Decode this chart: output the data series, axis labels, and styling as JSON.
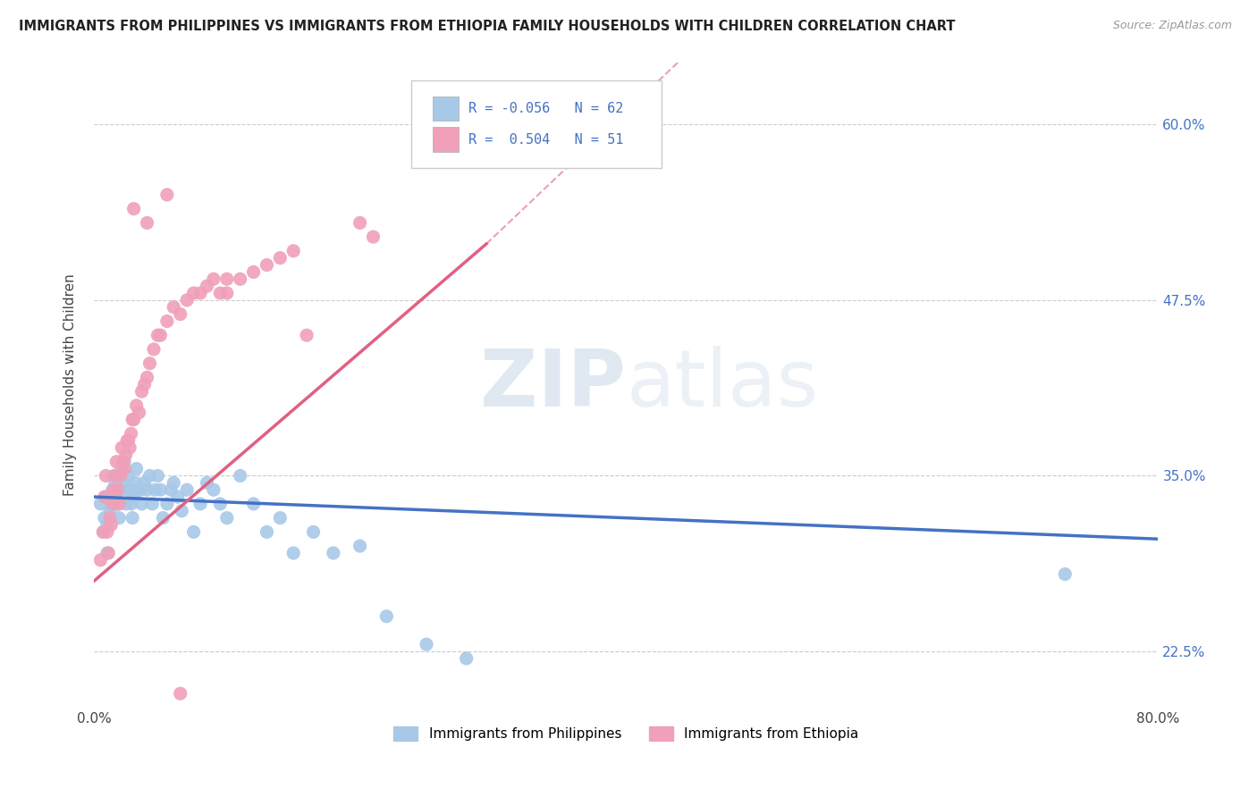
{
  "title": "IMMIGRANTS FROM PHILIPPINES VS IMMIGRANTS FROM ETHIOPIA FAMILY HOUSEHOLDS WITH CHILDREN CORRELATION CHART",
  "source": "Source: ZipAtlas.com",
  "ylabel": "Family Households with Children",
  "xlim": [
    0.0,
    0.8
  ],
  "ylim": [
    0.185,
    0.645
  ],
  "yticks": [
    0.225,
    0.35,
    0.475,
    0.6
  ],
  "ytick_labels": [
    "22.5%",
    "35.0%",
    "47.5%",
    "60.0%"
  ],
  "xticks": [
    0.0,
    0.2,
    0.4,
    0.6,
    0.8
  ],
  "xtick_labels": [
    "0.0%",
    "",
    "",
    "",
    "80.0%"
  ],
  "philippines_color": "#a8c8e8",
  "ethiopia_color": "#f0a0b8",
  "philippines_line_color": "#4472c4",
  "ethiopia_line_color": "#e06080",
  "watermark": "ZIPatlas",
  "philippines_x": [
    0.005,
    0.007,
    0.008,
    0.009,
    0.01,
    0.01,
    0.012,
    0.013,
    0.014,
    0.015,
    0.016,
    0.017,
    0.018,
    0.019,
    0.02,
    0.021,
    0.022,
    0.023,
    0.024,
    0.025,
    0.026,
    0.027,
    0.028,
    0.029,
    0.03,
    0.031,
    0.032,
    0.033,
    0.035,
    0.036,
    0.038,
    0.04,
    0.042,
    0.044,
    0.046,
    0.048,
    0.05,
    0.052,
    0.055,
    0.058,
    0.06,
    0.063,
    0.066,
    0.07,
    0.075,
    0.08,
    0.085,
    0.09,
    0.095,
    0.1,
    0.11,
    0.12,
    0.13,
    0.14,
    0.15,
    0.165,
    0.18,
    0.2,
    0.22,
    0.25,
    0.28,
    0.73
  ],
  "philippines_y": [
    0.33,
    0.31,
    0.32,
    0.335,
    0.295,
    0.315,
    0.325,
    0.33,
    0.34,
    0.35,
    0.345,
    0.335,
    0.33,
    0.32,
    0.34,
    0.355,
    0.345,
    0.36,
    0.33,
    0.34,
    0.35,
    0.34,
    0.33,
    0.32,
    0.335,
    0.345,
    0.355,
    0.34,
    0.34,
    0.33,
    0.345,
    0.34,
    0.35,
    0.33,
    0.34,
    0.35,
    0.34,
    0.32,
    0.33,
    0.34,
    0.345,
    0.335,
    0.325,
    0.34,
    0.31,
    0.33,
    0.345,
    0.34,
    0.33,
    0.32,
    0.35,
    0.33,
    0.31,
    0.32,
    0.295,
    0.31,
    0.295,
    0.3,
    0.25,
    0.23,
    0.22,
    0.28
  ],
  "ethiopia_x": [
    0.005,
    0.007,
    0.008,
    0.009,
    0.01,
    0.011,
    0.012,
    0.013,
    0.014,
    0.015,
    0.016,
    0.017,
    0.018,
    0.019,
    0.02,
    0.021,
    0.022,
    0.023,
    0.024,
    0.025,
    0.026,
    0.027,
    0.028,
    0.029,
    0.03,
    0.032,
    0.034,
    0.036,
    0.038,
    0.04,
    0.042,
    0.045,
    0.048,
    0.05,
    0.055,
    0.06,
    0.065,
    0.07,
    0.075,
    0.08,
    0.085,
    0.09,
    0.095,
    0.1,
    0.11,
    0.12,
    0.13,
    0.14,
    0.15,
    0.2,
    0.065
  ],
  "ethiopia_y": [
    0.29,
    0.31,
    0.335,
    0.35,
    0.31,
    0.295,
    0.32,
    0.315,
    0.33,
    0.34,
    0.35,
    0.36,
    0.34,
    0.33,
    0.35,
    0.37,
    0.36,
    0.355,
    0.365,
    0.375,
    0.375,
    0.37,
    0.38,
    0.39,
    0.39,
    0.4,
    0.395,
    0.41,
    0.415,
    0.42,
    0.43,
    0.44,
    0.45,
    0.45,
    0.46,
    0.47,
    0.465,
    0.475,
    0.48,
    0.48,
    0.485,
    0.49,
    0.48,
    0.49,
    0.49,
    0.495,
    0.5,
    0.505,
    0.51,
    0.53,
    0.195
  ],
  "ethiopia_extra_x": [
    0.03,
    0.04,
    0.055,
    0.1,
    0.16,
    0.21
  ],
  "ethiopia_extra_y": [
    0.54,
    0.53,
    0.55,
    0.48,
    0.45,
    0.52
  ]
}
